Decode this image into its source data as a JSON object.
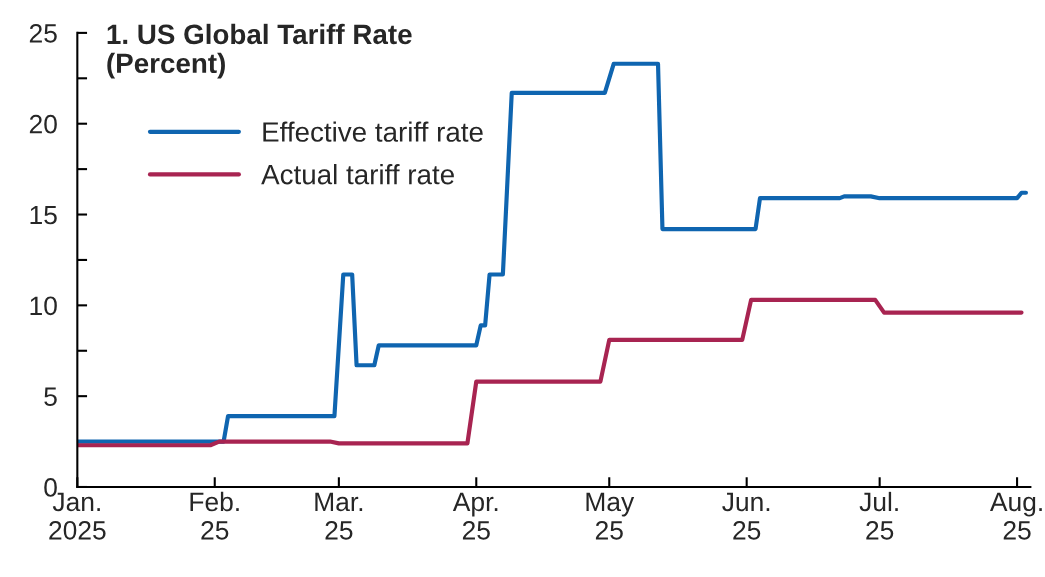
{
  "chart_data": {
    "type": "line",
    "title": "1. US Global Tariff Rate\n(Percent)",
    "xlim": [
      "2025-01-01",
      "2025-08-04"
    ],
    "xticks": [
      {
        "value": "2025-01-01",
        "label": "Jan.\n2025"
      },
      {
        "value": "2025-02-01",
        "label": "Feb.\n25"
      },
      {
        "value": "2025-03-01",
        "label": "Mar.\n25"
      },
      {
        "value": "2025-04-01",
        "label": "Apr.\n25"
      },
      {
        "value": "2025-05-01",
        "label": "May\n25"
      },
      {
        "value": "2025-06-01",
        "label": "Jun.\n25"
      },
      {
        "value": "2025-07-01",
        "label": "Jul.\n25"
      },
      {
        "value": "2025-08-01",
        "label": "Aug.\n25"
      }
    ],
    "ylim": [
      0,
      25
    ],
    "yticks": [
      0,
      {
        "value": 2.5,
        "label": null
      },
      5,
      {
        "value": 7.5,
        "label": null
      },
      10,
      {
        "value": 12.5,
        "label": null
      },
      15,
      {
        "value": 17.5,
        "label": null
      },
      20,
      {
        "value": 22.5,
        "label": null
      },
      25
    ],
    "grid": false,
    "legend": "top left",
    "line_style": "solid",
    "marker": "none",
    "series": [
      {
        "name": "Effective tariff rate",
        "color": "#0f65b0",
        "x": [
          "2025-01-01",
          "2025-02-03",
          "2025-02-04",
          "2025-02-28",
          "2025-03-02",
          "2025-03-04",
          "2025-03-05",
          "2025-03-09",
          "2025-03-10",
          "2025-04-01",
          "2025-04-02",
          "2025-04-03",
          "2025-04-04",
          "2025-04-07",
          "2025-04-09",
          "2025-04-30",
          "2025-05-02",
          "2025-05-12",
          "2025-05-13",
          "2025-06-03",
          "2025-06-04",
          "2025-06-22",
          "2025-06-23",
          "2025-06-29",
          "2025-07-01",
          "2025-08-01",
          "2025-08-02",
          "2025-08-03"
        ],
        "values": [
          2.5,
          2.5,
          3.9,
          3.9,
          11.7,
          11.7,
          6.7,
          6.7,
          7.8,
          7.8,
          8.9,
          8.9,
          11.7,
          11.7,
          21.7,
          21.7,
          23.3,
          23.3,
          14.2,
          14.2,
          15.9,
          15.9,
          16.0,
          16.0,
          15.9,
          15.9,
          16.2,
          16.2
        ]
      },
      {
        "name": "Actual tariff rate",
        "color": "#a82451",
        "x": [
          "2025-01-01",
          "2025-01-31",
          "2025-02-02",
          "2025-02-27",
          "2025-03-01",
          "2025-03-30",
          "2025-04-01",
          "2025-04-29",
          "2025-05-01",
          "2025-05-31",
          "2025-06-02",
          "2025-06-30",
          "2025-07-02",
          "2025-08-02"
        ],
        "values": [
          2.3,
          2.3,
          2.5,
          2.5,
          2.4,
          2.4,
          5.8,
          5.8,
          8.1,
          8.1,
          10.3,
          10.3,
          9.6,
          9.6
        ]
      }
    ]
  }
}
